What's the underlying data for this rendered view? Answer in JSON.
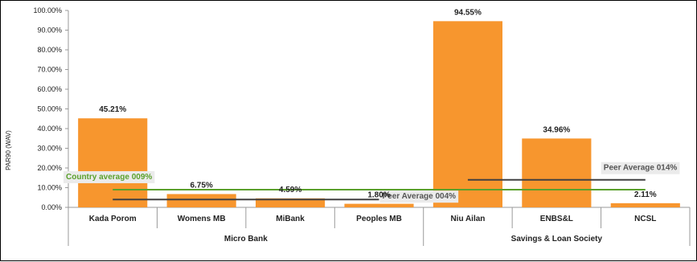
{
  "chart_data": {
    "type": "bar",
    "ylabel": "PAR90 (WAV)",
    "ylim": [
      0,
      100
    ],
    "yticks": [
      "0.00%",
      "10.00%",
      "20.00%",
      "30.00%",
      "40.00%",
      "50.00%",
      "60.00%",
      "70.00%",
      "80.00%",
      "90.00%",
      "100.00%"
    ],
    "grid": false,
    "bar_color": "#f7962e",
    "categories": [
      "Kada Porom",
      "Womens MB",
      "MiBank",
      "Peoples MB",
      "Niu Ailan",
      "ENBS&L",
      "NCSL"
    ],
    "values": [
      45.21,
      6.75,
      4.59,
      1.8,
      94.55,
      34.96,
      2.11
    ],
    "value_labels": [
      "45.21%",
      "6.75%",
      "4.59%",
      "1.80%",
      "94.55%",
      "34.96%",
      "2.11%"
    ],
    "groups": [
      {
        "name": "Micro Bank",
        "categories": [
          "Kada Porom",
          "Womens MB",
          "MiBank",
          "Peoples MB"
        ]
      },
      {
        "name": "Savings & Loan Society",
        "categories": [
          "Niu Ailan",
          "ENBS&L",
          "NCSL"
        ]
      }
    ],
    "reference_lines": [
      {
        "label": "Country average 009%",
        "value": 9,
        "color": "#5aa02c",
        "span": "all"
      },
      {
        "label": "Peer Average 004%",
        "value": 4,
        "color": "#404040",
        "span": "Micro Bank"
      },
      {
        "label": "Peer Average 014%",
        "value": 14,
        "color": "#404040",
        "span": "Savings & Loan Society"
      }
    ]
  }
}
